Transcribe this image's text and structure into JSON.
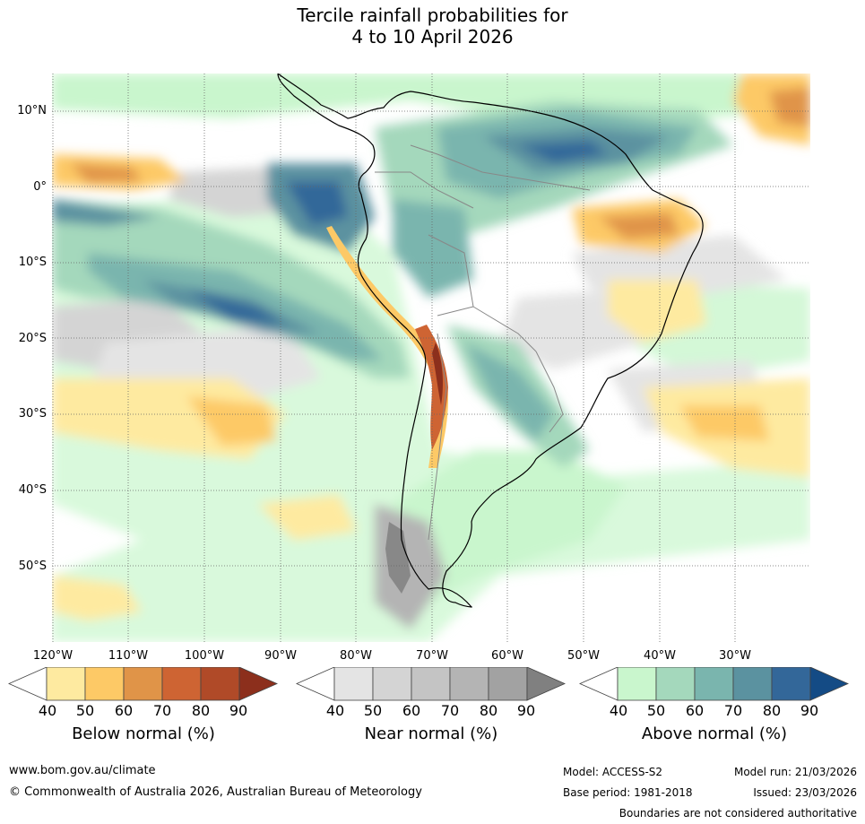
{
  "title": {
    "line1": "Tercile rainfall probabilities for",
    "line2": "4 to 10 April 2026"
  },
  "map": {
    "latitude_labels": [
      "10°N",
      "0°",
      "10°S",
      "20°S",
      "30°S",
      "40°S",
      "50°S"
    ],
    "longitude_labels": [
      "120°W",
      "110°W",
      "100°W",
      "90°W",
      "80°W",
      "70°W",
      "60°W",
      "50°W",
      "40°W",
      "30°W"
    ]
  },
  "colorbars": {
    "below": {
      "label": "Below normal (%)",
      "ticks": [
        "40",
        "50",
        "60",
        "70",
        "80",
        "90"
      ],
      "colors": [
        "#ffffff",
        "#feeaa0",
        "#fdc966",
        "#e09448",
        "#ce6433",
        "#b04a28",
        "#8c2f1c"
      ]
    },
    "near": {
      "label": "Near normal (%)",
      "ticks": [
        "40",
        "50",
        "60",
        "70",
        "80",
        "90"
      ],
      "colors": [
        "#ffffff",
        "#e4e4e4",
        "#d4d4d4",
        "#c4c4c4",
        "#b4b4b4",
        "#a2a2a2",
        "#808080"
      ]
    },
    "above": {
      "label": "Above normal (%)",
      "ticks": [
        "40",
        "50",
        "60",
        "70",
        "80",
        "90"
      ],
      "colors": [
        "#ffffff",
        "#c9f6cd",
        "#a4d8bc",
        "#7ab5ae",
        "#5b92a0",
        "#336799",
        "#144b85"
      ]
    }
  },
  "footer": {
    "url": "www.bom.gov.au/climate",
    "copyright": "© Commonwealth of Australia 2026, Australian Bureau of Meteorology",
    "model": "Model: ACCESS-S2",
    "model_run": "Model run: 21/03/2026",
    "base_period": "Base period: 1981-2018",
    "issued": "Issued: 23/03/2026",
    "disclaimer": "Boundaries are not considered authoritative"
  }
}
